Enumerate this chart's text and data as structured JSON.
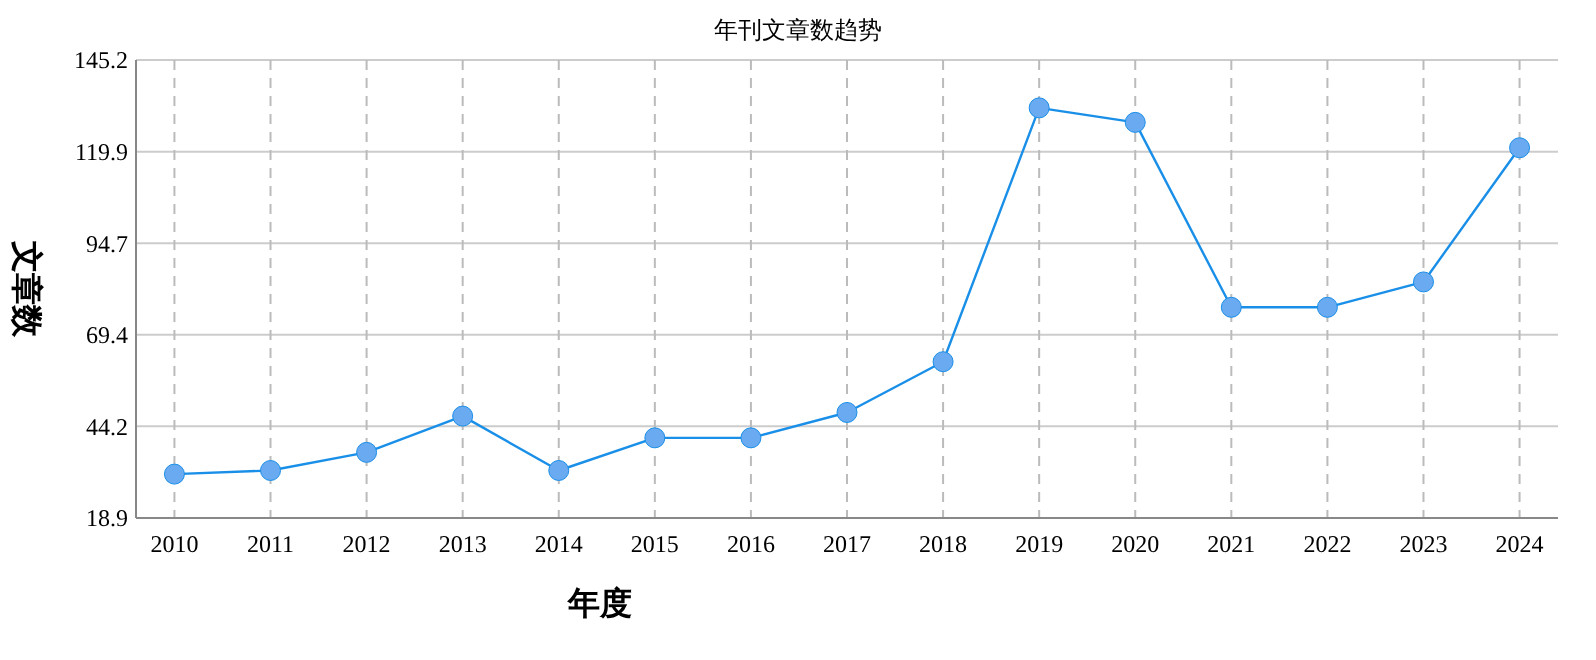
{
  "chart_data": {
    "type": "line",
    "title": "年刊文章数趋势",
    "xlabel": "年度",
    "ylabel": "文章数",
    "categories": [
      "2010",
      "2011",
      "2012",
      "2013",
      "2014",
      "2015",
      "2016",
      "2017",
      "2018",
      "2019",
      "2020",
      "2021",
      "2022",
      "2023",
      "2024"
    ],
    "series": [
      {
        "color": "#1a8fe8",
        "values": [
          31,
          32,
          37,
          47,
          32,
          41,
          41,
          48,
          62,
          132,
          128,
          77,
          77,
          84,
          121
        ]
      }
    ],
    "ylim": [
      18.9,
      145.2
    ],
    "yticks": [
      18.9,
      44.2,
      69.4,
      94.7,
      119.9,
      145.2
    ],
    "grid": true,
    "marker": "circle",
    "line_style": "solid"
  }
}
